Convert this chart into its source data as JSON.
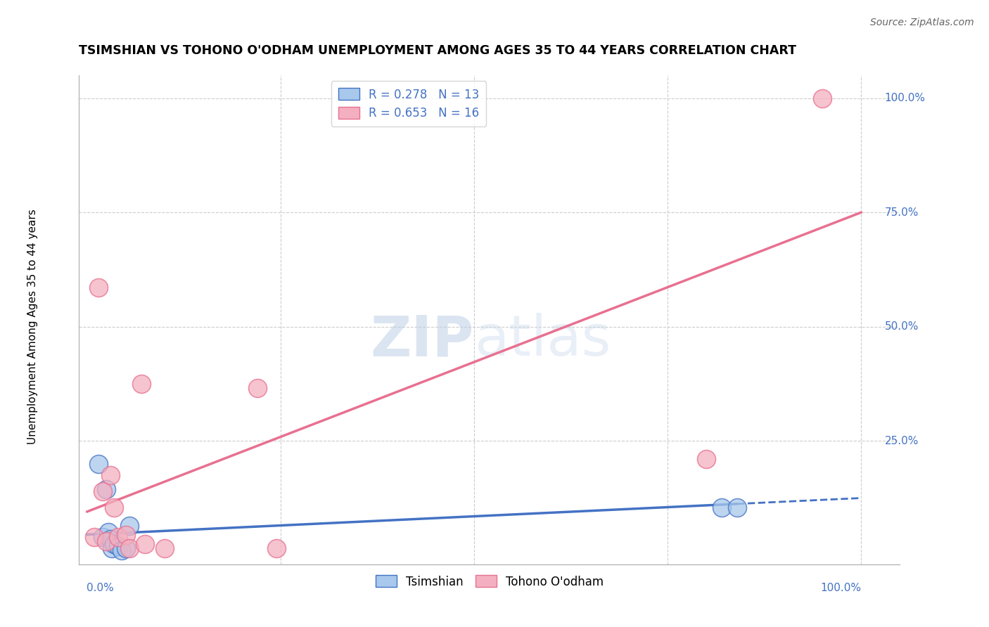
{
  "title": "TSIMSHIAN VS TOHONO O'ODHAM UNEMPLOYMENT AMONG AGES 35 TO 44 YEARS CORRELATION CHART",
  "source": "Source: ZipAtlas.com",
  "ylabel": "Unemployment Among Ages 35 to 44 years",
  "watermark_zip": "ZIP",
  "watermark_atlas": "atlas",
  "legend_tsimshian": "Tsimshian",
  "legend_tohono": "Tohono O'odham",
  "R_tsimshian": 0.278,
  "N_tsimshian": 13,
  "R_tohono": 0.653,
  "N_tohono": 16,
  "color_tsimshian": "#A8C8EC",
  "color_tohono": "#F4B0C0",
  "line_color_tsimshian": "#4472C4",
  "line_color_tohono": "#E87090",
  "label_color": "#4472C4",
  "tsimshian_x": [
    1.5,
    2.0,
    2.5,
    2.8,
    3.0,
    3.2,
    3.5,
    4.0,
    4.5,
    5.0,
    5.5,
    82.0,
    84.0
  ],
  "tsimshian_y": [
    20.0,
    4.0,
    14.5,
    5.0,
    3.5,
    1.5,
    2.5,
    2.0,
    1.0,
    1.5,
    6.5,
    10.5,
    10.5
  ],
  "tohono_x": [
    1.0,
    1.5,
    2.0,
    2.5,
    3.0,
    3.5,
    4.0,
    5.0,
    5.5,
    7.0,
    7.5,
    10.0,
    22.0,
    24.5,
    80.0,
    95.0
  ],
  "tohono_y": [
    4.0,
    58.5,
    14.0,
    3.0,
    17.5,
    10.5,
    4.0,
    4.5,
    1.5,
    37.5,
    2.5,
    1.5,
    36.5,
    1.5,
    21.0,
    100.0
  ],
  "line_ts_x0": 0.0,
  "line_ts_y0": 4.5,
  "line_ts_x1": 100.0,
  "line_ts_y1": 12.5,
  "line_to_x0": 0.0,
  "line_to_y0": 9.5,
  "line_to_x1": 100.0,
  "line_to_y1": 75.0,
  "dash_start_x": 84.0,
  "ylim_min": -2,
  "ylim_max": 105,
  "xlim_min": -1,
  "xlim_max": 105
}
